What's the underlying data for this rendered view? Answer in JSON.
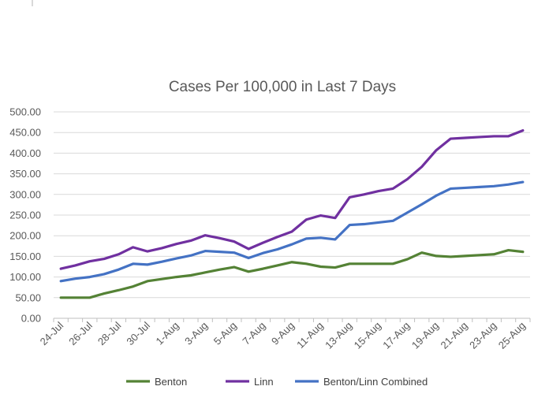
{
  "chart_data": {
    "type": "line",
    "title": "Cases Per 100,000 in Last 7 Days",
    "xlabel": "",
    "ylabel": "",
    "ylim": [
      0,
      500
    ],
    "yticks": [
      "0.00",
      "50.00",
      "100.00",
      "150.00",
      "200.00",
      "250.00",
      "300.00",
      "350.00",
      "400.00",
      "450.00",
      "500.00"
    ],
    "x": [
      "24-Jul",
      "25-Jul",
      "26-Jul",
      "27-Jul",
      "28-Jul",
      "29-Jul",
      "30-Jul",
      "31-Jul",
      "1-Aug",
      "2-Aug",
      "3-Aug",
      "4-Aug",
      "5-Aug",
      "6-Aug",
      "7-Aug",
      "8-Aug",
      "9-Aug",
      "10-Aug",
      "11-Aug",
      "12-Aug",
      "13-Aug",
      "14-Aug",
      "15-Aug",
      "16-Aug",
      "17-Aug",
      "18-Aug",
      "19-Aug",
      "20-Aug",
      "21-Aug",
      "22-Aug",
      "23-Aug",
      "24-Aug",
      "25-Aug"
    ],
    "x_tick_labels": [
      "24-Jul",
      "26-Jul",
      "28-Jul",
      "30-Jul",
      "1-Aug",
      "3-Aug",
      "5-Aug",
      "7-Aug",
      "9-Aug",
      "11-Aug",
      "13-Aug",
      "15-Aug",
      "17-Aug",
      "19-Aug",
      "21-Aug",
      "23-Aug",
      "25-Aug"
    ],
    "grid": true,
    "legend_position": "bottom",
    "series": [
      {
        "name": "Benton",
        "color": "#548235",
        "values": [
          50,
          50,
          50,
          60,
          68,
          77,
          90,
          95,
          100,
          104,
          111,
          118,
          124,
          113,
          120,
          128,
          136,
          132,
          125,
          123,
          132,
          132,
          132,
          132,
          143,
          159,
          151,
          149,
          151,
          153,
          155,
          165,
          161
        ]
      },
      {
        "name": "Linn",
        "color": "#7030A0",
        "values": [
          120,
          128,
          138,
          144,
          155,
          172,
          162,
          170,
          180,
          188,
          201,
          194,
          186,
          168,
          183,
          197,
          210,
          239,
          249,
          243,
          293,
          300,
          308,
          314,
          337,
          367,
          407,
          435,
          437,
          439,
          441,
          441,
          455
        ]
      },
      {
        "name": "Benton/Linn Combined",
        "color": "#4472C4",
        "values": [
          90,
          96,
          100,
          107,
          118,
          132,
          130,
          137,
          145,
          152,
          163,
          161,
          159,
          146,
          158,
          167,
          179,
          193,
          195,
          191,
          226,
          228,
          232,
          236,
          256,
          276,
          297,
          314,
          316,
          318,
          320,
          324,
          330
        ]
      }
    ]
  }
}
